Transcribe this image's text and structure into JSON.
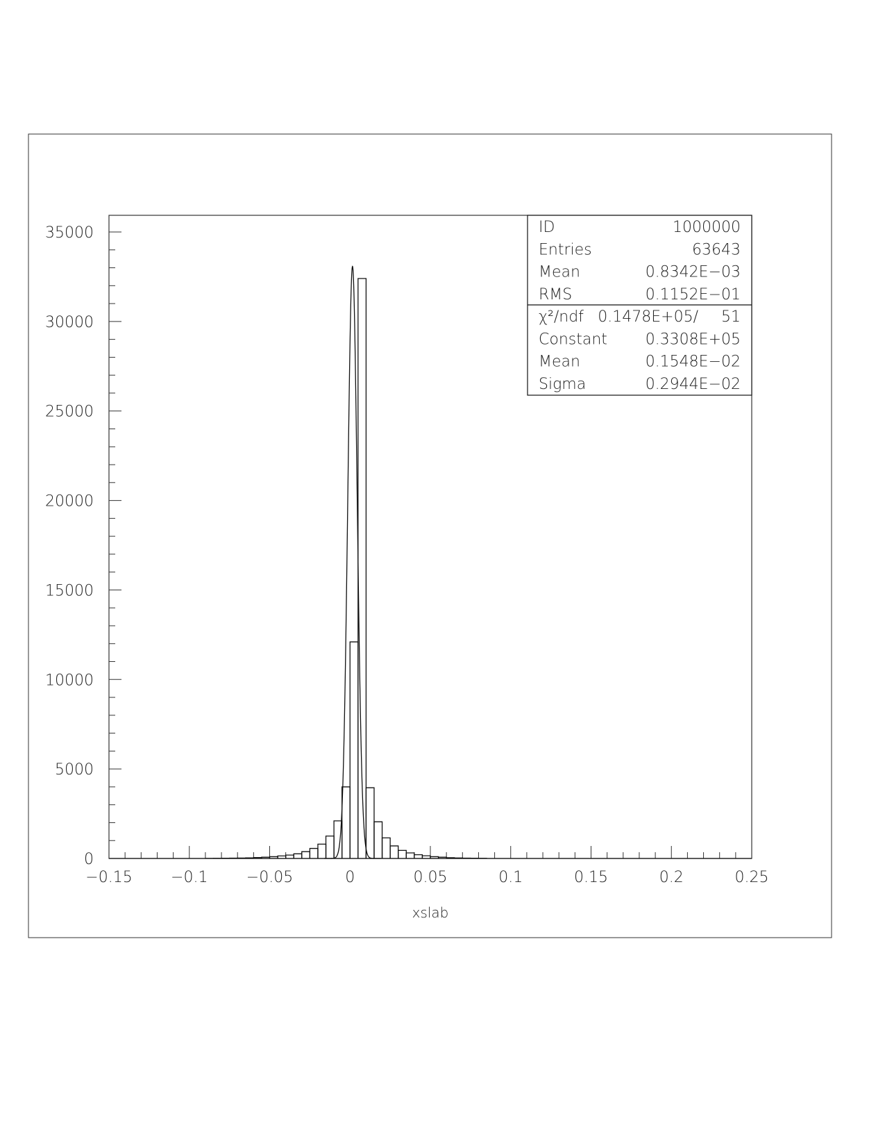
{
  "chart_data": {
    "type": "histogram",
    "xlabel": "xslab",
    "ylabel": "",
    "xlim": [
      -0.15,
      0.25
    ],
    "ylim": [
      0,
      36000
    ],
    "x_ticks": [
      -0.15,
      -0.1,
      -0.05,
      0,
      0.05,
      0.1,
      0.15,
      0.2,
      0.25
    ],
    "x_tick_labels": [
      "−0.15",
      "−0.1",
      "−0.05",
      "0",
      "0.05",
      "0.1",
      "0.15",
      "0.2",
      "0.25"
    ],
    "y_ticks": [
      0,
      5000,
      10000,
      15000,
      20000,
      25000,
      30000,
      35000
    ],
    "y_tick_labels": [
      "0",
      "5000",
      "10000",
      "15000",
      "20000",
      "25000",
      "30000",
      "35000"
    ],
    "histogram": {
      "bin_width": 0.005,
      "bins": [
        {
          "x0": -0.09,
          "x1": -0.085,
          "value": 5
        },
        {
          "x0": -0.085,
          "x1": -0.08,
          "value": 8
        },
        {
          "x0": -0.08,
          "x1": -0.075,
          "value": 12
        },
        {
          "x0": -0.075,
          "x1": -0.07,
          "value": 18
        },
        {
          "x0": -0.07,
          "x1": -0.065,
          "value": 25
        },
        {
          "x0": -0.065,
          "x1": -0.06,
          "value": 35
        },
        {
          "x0": -0.06,
          "x1": -0.055,
          "value": 50
        },
        {
          "x0": -0.055,
          "x1": -0.05,
          "value": 70
        },
        {
          "x0": -0.05,
          "x1": -0.045,
          "value": 100
        },
        {
          "x0": -0.045,
          "x1": -0.04,
          "value": 140
        },
        {
          "x0": -0.04,
          "x1": -0.035,
          "value": 190
        },
        {
          "x0": -0.035,
          "x1": -0.03,
          "value": 260
        },
        {
          "x0": -0.03,
          "x1": -0.025,
          "value": 380
        },
        {
          "x0": -0.025,
          "x1": -0.02,
          "value": 560
        },
        {
          "x0": -0.02,
          "x1": -0.015,
          "value": 800
        },
        {
          "x0": -0.015,
          "x1": -0.01,
          "value": 1250
        },
        {
          "x0": -0.01,
          "x1": -0.005,
          "value": 2100
        },
        {
          "x0": -0.005,
          "x1": 0.0,
          "value": 4000
        },
        {
          "x0": 0.0,
          "x1": 0.005,
          "value": 12100
        },
        {
          "x0": 0.005,
          "x1": 0.01,
          "value": 32400
        },
        {
          "x0": 0.01,
          "x1": 0.015,
          "value": 3950
        },
        {
          "x0": 0.015,
          "x1": 0.02,
          "value": 2050
        },
        {
          "x0": 0.02,
          "x1": 0.025,
          "value": 1150
        },
        {
          "x0": 0.025,
          "x1": 0.03,
          "value": 700
        },
        {
          "x0": 0.03,
          "x1": 0.035,
          "value": 450
        },
        {
          "x0": 0.035,
          "x1": 0.04,
          "value": 310
        },
        {
          "x0": 0.04,
          "x1": 0.045,
          "value": 210
        },
        {
          "x0": 0.045,
          "x1": 0.05,
          "value": 150
        },
        {
          "x0": 0.05,
          "x1": 0.055,
          "value": 100
        },
        {
          "x0": 0.055,
          "x1": 0.06,
          "value": 70
        },
        {
          "x0": 0.06,
          "x1": 0.065,
          "value": 45
        },
        {
          "x0": 0.065,
          "x1": 0.07,
          "value": 30
        },
        {
          "x0": 0.07,
          "x1": 0.075,
          "value": 20
        },
        {
          "x0": 0.075,
          "x1": 0.08,
          "value": 12
        },
        {
          "x0": 0.08,
          "x1": 0.085,
          "value": 8
        }
      ]
    },
    "fit": {
      "type": "gaussian",
      "constant": 33080,
      "mean": 0.001548,
      "sigma": 0.002944
    },
    "stats_box": {
      "rows": [
        {
          "label": "ID",
          "value": "1000000"
        },
        {
          "label": "Entries",
          "value": "63643"
        },
        {
          "label": "Mean",
          "value": "0.8342E−03"
        },
        {
          "label": "RMS",
          "value": "0.1152E−01"
        }
      ],
      "fit_rows": [
        {
          "label": "χ²/ndf",
          "value": "0.1478E+05/",
          "extra": "51"
        },
        {
          "label": "Constant",
          "value": "0.3308E+05"
        },
        {
          "label": "Mean",
          "value": "0.1548E−02"
        },
        {
          "label": "Sigma",
          "value": "0.2944E−02"
        }
      ]
    }
  }
}
